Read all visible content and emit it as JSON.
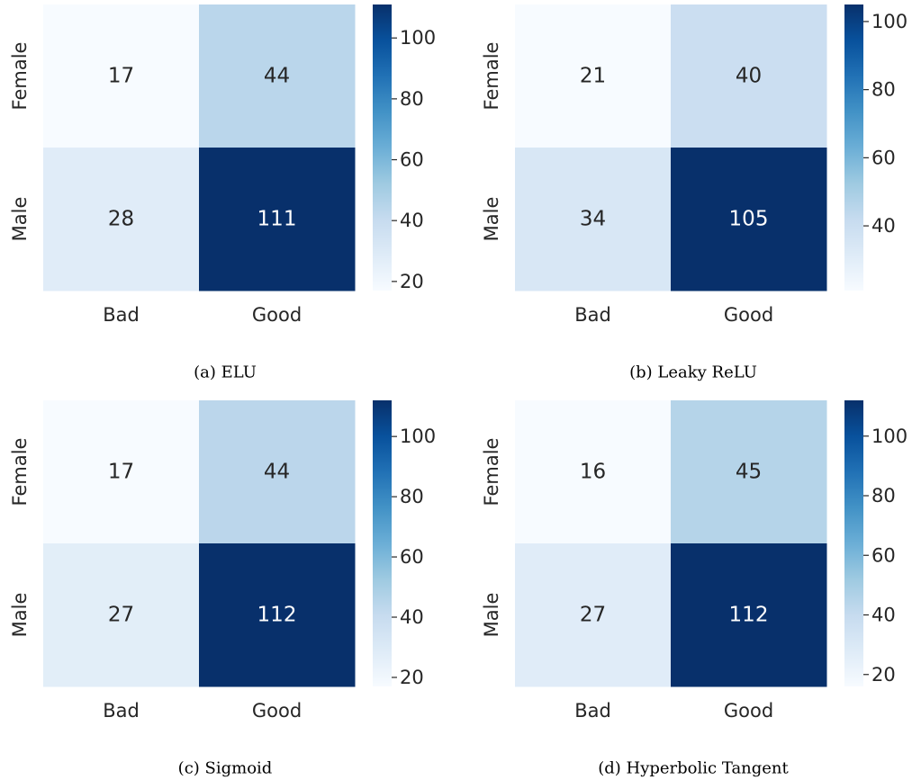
{
  "chart_data": [
    {
      "type": "heatmap",
      "caption": "(a) ELU",
      "rows": [
        "Female",
        "Male"
      ],
      "columns": [
        "Bad",
        "Good"
      ],
      "values": [
        [
          17,
          44
        ],
        [
          28,
          111
        ]
      ],
      "colormap": "Blues",
      "vmin": 17,
      "vmax": 111,
      "colorbar_ticks": [
        20,
        40,
        60,
        80,
        100
      ]
    },
    {
      "type": "heatmap",
      "caption": "(b) Leaky ReLU",
      "rows": [
        "Female",
        "Male"
      ],
      "columns": [
        "Bad",
        "Good"
      ],
      "values": [
        [
          21,
          40
        ],
        [
          34,
          105
        ]
      ],
      "colormap": "Blues",
      "vmin": 21,
      "vmax": 105,
      "colorbar_ticks": [
        40,
        60,
        80,
        100
      ]
    },
    {
      "type": "heatmap",
      "caption": "(c) Sigmoid",
      "rows": [
        "Female",
        "Male"
      ],
      "columns": [
        "Bad",
        "Good"
      ],
      "values": [
        [
          17,
          44
        ],
        [
          27,
          112
        ]
      ],
      "colormap": "Blues",
      "vmin": 17,
      "vmax": 112,
      "colorbar_ticks": [
        20,
        40,
        60,
        80,
        100
      ]
    },
    {
      "type": "heatmap",
      "caption": "(d) Hyperbolic Tangent",
      "rows": [
        "Female",
        "Male"
      ],
      "columns": [
        "Bad",
        "Good"
      ],
      "values": [
        [
          16,
          45
        ],
        [
          27,
          112
        ]
      ],
      "colormap": "Blues",
      "vmin": 16,
      "vmax": 112,
      "colorbar_ticks": [
        20,
        40,
        60,
        80,
        100
      ]
    }
  ]
}
